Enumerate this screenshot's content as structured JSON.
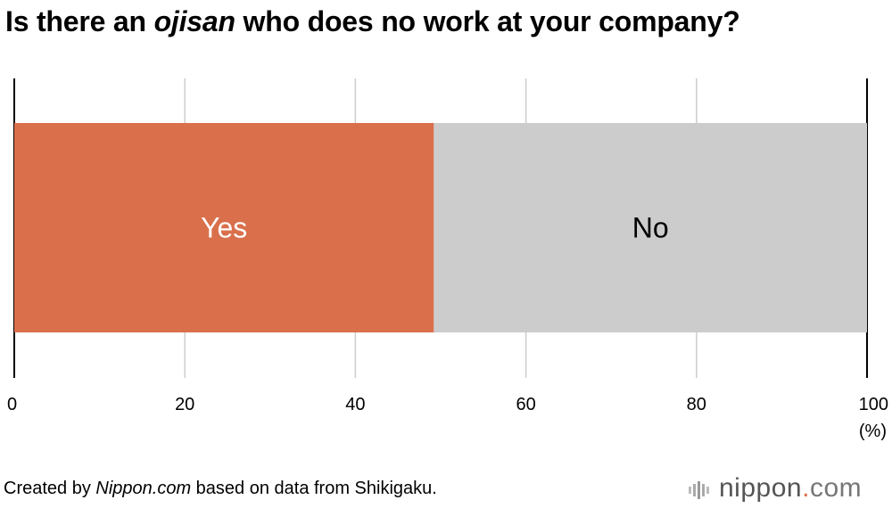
{
  "title": {
    "before": "Is there an ",
    "emphasis": "ojisan",
    "after": " who does no work at your company?"
  },
  "chart_data": {
    "type": "bar",
    "orientation": "horizontal",
    "stacked": true,
    "categories": [
      ""
    ],
    "series": [
      {
        "name": "Yes",
        "values": [
          49.2
        ],
        "color": "#d9704b",
        "label_color": "#ffffff"
      },
      {
        "name": "No",
        "values": [
          50.8
        ],
        "color": "#cccccc",
        "label_color": "#000000"
      }
    ],
    "xlim": [
      0,
      100
    ],
    "xticks": [
      "0",
      "20",
      "40",
      "60",
      "80",
      "100"
    ],
    "xunit": "(%)",
    "grid": true
  },
  "footer": {
    "before": "Created by ",
    "emphasis": "Nippon.com",
    "after": " based on data from Shikigaku."
  },
  "logo": {
    "name": "nippon",
    "dot": ".",
    "suffix": "com",
    "icon": "nippon-bars-icon"
  }
}
